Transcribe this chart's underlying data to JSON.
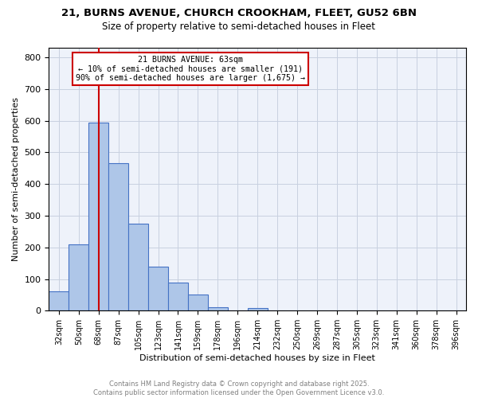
{
  "title": "21, BURNS AVENUE, CHURCH CROOKHAM, FLEET, GU52 6BN",
  "subtitle": "Size of property relative to semi-detached houses in Fleet",
  "xlabel": "Distribution of semi-detached houses by size in Fleet",
  "ylabel": "Number of semi-detached properties",
  "bin_labels": [
    "32sqm",
    "50sqm",
    "68sqm",
    "87sqm",
    "105sqm",
    "123sqm",
    "141sqm",
    "159sqm",
    "178sqm",
    "196sqm",
    "214sqm",
    "232sqm",
    "250sqm",
    "269sqm",
    "287sqm",
    "305sqm",
    "323sqm",
    "341sqm",
    "360sqm",
    "378sqm",
    "396sqm"
  ],
  "bar_values": [
    60,
    210,
    595,
    465,
    275,
    140,
    90,
    50,
    10,
    0,
    8,
    0,
    0,
    0,
    0,
    0,
    0,
    0,
    0,
    0,
    0
  ],
  "bar_color": "#aec6e8",
  "bar_edge_color": "#4472c4",
  "vline_x_index": 2,
  "vline_color": "#cc0000",
  "annotation_title": "21 BURNS AVENUE: 63sqm",
  "annotation_line1": "← 10% of semi-detached houses are smaller (191)",
  "annotation_line2": "90% of semi-detached houses are larger (1,675) →",
  "annotation_box_color": "#cc0000",
  "ylim": [
    0,
    830
  ],
  "yticks": [
    0,
    100,
    200,
    300,
    400,
    500,
    600,
    700,
    800
  ],
  "footer_line1": "Contains HM Land Registry data © Crown copyright and database right 2025.",
  "footer_line2": "Contains public sector information licensed under the Open Government Licence v3.0.",
  "bg_color": "#eef2fa",
  "grid_color": "#c8d0e0"
}
